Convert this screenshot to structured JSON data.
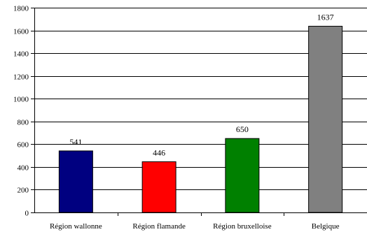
{
  "chart_data": {
    "type": "bar",
    "title": "",
    "xlabel": "",
    "ylabel": "",
    "categories": [
      "Région wallonne",
      "Région flamande",
      "Région bruxelloise",
      "Belgique"
    ],
    "values": [
      541,
      446,
      650,
      1637
    ],
    "data_labels": [
      "541",
      "446",
      "650",
      "1637"
    ],
    "colors": [
      "#000080",
      "#ff0000",
      "#008000",
      "#808080"
    ],
    "ylim": [
      0,
      1800
    ],
    "yticks": [
      0,
      200,
      400,
      600,
      800,
      1000,
      1200,
      1400,
      1600,
      1800
    ],
    "grid": true,
    "legend": "none"
  }
}
